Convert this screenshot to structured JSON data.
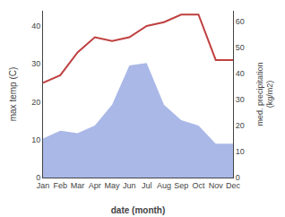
{
  "chart_data": {
    "type": "line",
    "categories": [
      "Jan",
      "Feb",
      "Mar",
      "Apr",
      "May",
      "Jun",
      "Jul",
      "Aug",
      "Sep",
      "Oct",
      "Nov",
      "Dec"
    ],
    "series": [
      {
        "type": "area",
        "color": "#aab8e8",
        "axis": "y2",
        "values": [
          15,
          18,
          17,
          20,
          28,
          43,
          44,
          28,
          22,
          20,
          13,
          13
        ]
      },
      {
        "type": "line",
        "color": "#c04040",
        "values": [
          25,
          27,
          33,
          37,
          36,
          37,
          40,
          41,
          43,
          43,
          31,
          31
        ]
      }
    ],
    "xlabel": "date (month)",
    "ylabel": "max temp (C)",
    "y2label": "med. precipitation\n(kg/m2)",
    "ylim": [
      0,
      44
    ],
    "yticks": [
      0,
      10,
      20,
      30,
      40
    ],
    "y2lim": [
      0,
      64
    ],
    "y2ticks": [
      0,
      10,
      20,
      30,
      40,
      50,
      60
    ],
    "grid": false
  }
}
